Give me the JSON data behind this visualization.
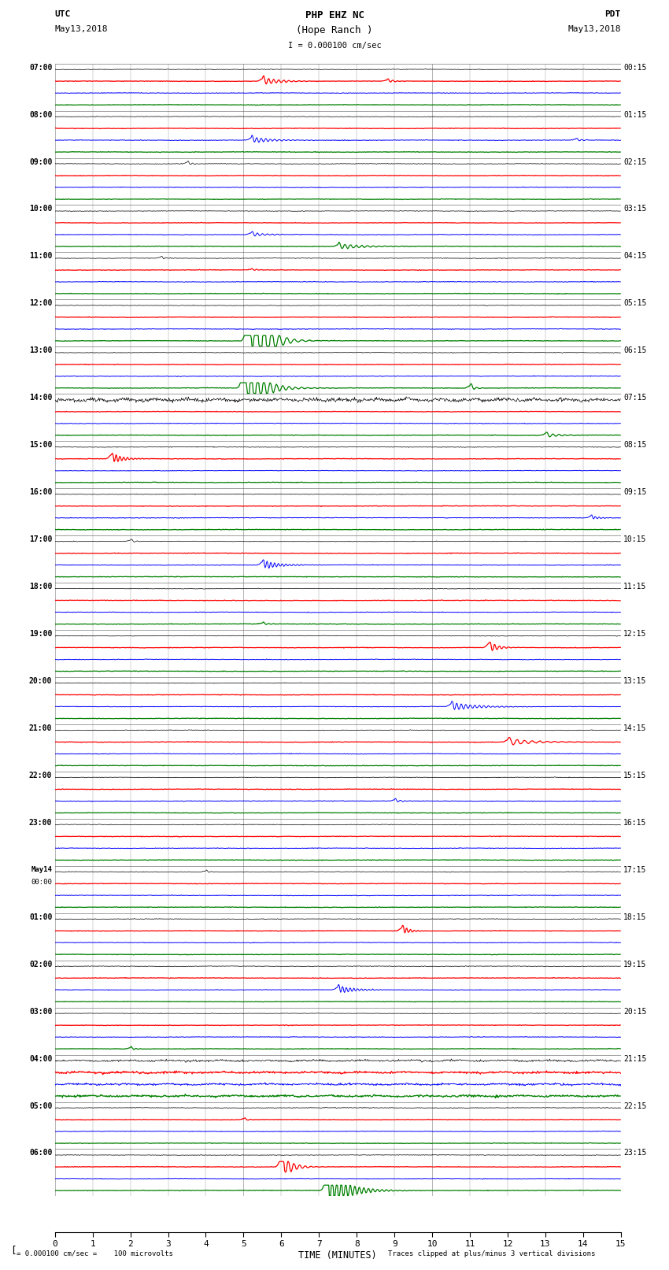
{
  "title_line1": "PHP EHZ NC",
  "title_line2": "(Hope Ranch )",
  "scale_text": "I = 0.000100 cm/sec",
  "left_header1": "UTC",
  "left_header2": "May13,2018",
  "right_header1": "PDT",
  "right_header2": "May13,2018",
  "bottom_label": "TIME (MINUTES)",
  "footer_left": "= 0.000100 cm/sec =    100 microvolts",
  "footer_right": "Traces clipped at plus/minus 3 vertical divisions",
  "utc_labels": [
    "07:00",
    "08:00",
    "09:00",
    "10:00",
    "11:00",
    "12:00",
    "13:00",
    "14:00",
    "15:00",
    "16:00",
    "17:00",
    "18:00",
    "19:00",
    "20:00",
    "21:00",
    "22:00",
    "23:00",
    "May14\n00:00",
    "01:00",
    "02:00",
    "03:00",
    "04:00",
    "05:00",
    "06:00"
  ],
  "pdt_labels": [
    "00:15",
    "01:15",
    "02:15",
    "03:15",
    "04:15",
    "05:15",
    "06:15",
    "07:15",
    "08:15",
    "09:15",
    "10:15",
    "11:15",
    "12:15",
    "13:15",
    "14:15",
    "15:15",
    "16:15",
    "17:15",
    "18:15",
    "19:15",
    "20:15",
    "21:15",
    "22:15",
    "23:15"
  ],
  "trace_colors": [
    "black",
    "red",
    "blue",
    "green"
  ],
  "n_hours": 24,
  "n_traces_per_hour": 4,
  "xlim": [
    0,
    15
  ],
  "bg_color": "white"
}
